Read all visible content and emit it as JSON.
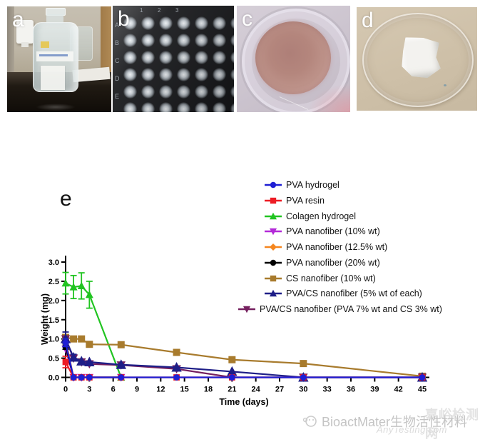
{
  "panels": {
    "a_label": "a",
    "b_label": "b",
    "c_label": "c",
    "d_label": "d",
    "e_label": "e"
  },
  "photo_b": {
    "row_labels": [
      "A",
      "B",
      "C",
      "D",
      "E"
    ],
    "col_labels": [
      "1",
      "2",
      "3"
    ]
  },
  "chart_data": {
    "type": "line",
    "title": "",
    "xlabel": "Time (days)",
    "ylabel": "Weight (mg)",
    "xlim": [
      0,
      45
    ],
    "ylim": [
      0.0,
      3.0
    ],
    "xticks": [
      0,
      3,
      6,
      9,
      12,
      15,
      18,
      21,
      24,
      27,
      30,
      33,
      36,
      39,
      42,
      45
    ],
    "yticks": [
      0.0,
      0.5,
      1.0,
      1.5,
      2.0,
      2.5,
      3.0
    ],
    "ytick_labels": [
      "0.0",
      "0.5",
      "1.0",
      "1.5",
      "2.0",
      "2.5",
      "3.0"
    ],
    "grid": false,
    "legend_position": "upper right, outside plot top",
    "series": [
      {
        "name": "PVA hydrogel",
        "color": "#1f1fd4",
        "marker": "circle",
        "msize": 4.4,
        "x": [
          0,
          1,
          2,
          3,
          7,
          14,
          21,
          30,
          45
        ],
        "y": [
          0.9,
          0,
          0,
          0,
          0,
          0,
          0,
          0,
          0
        ],
        "err": [
          0.1,
          0,
          0,
          0,
          0,
          0,
          0,
          0,
          0
        ]
      },
      {
        "name": "PVA resin",
        "color": "#ed1c24",
        "marker": "square",
        "msize": 4.4,
        "x": [
          0,
          1,
          2,
          3,
          7,
          14,
          21,
          30,
          45
        ],
        "y": [
          0.4,
          0,
          0,
          0,
          0,
          0,
          0,
          0,
          0
        ],
        "err": [
          0.15,
          0,
          0,
          0,
          0,
          0,
          0,
          0,
          0
        ]
      },
      {
        "name": "Colagen hydrogel",
        "color": "#21c421",
        "marker": "triangle",
        "msize": 4.6,
        "x": [
          0,
          1,
          2,
          3,
          7
        ],
        "y": [
          2.45,
          2.35,
          2.38,
          2.15,
          0
        ],
        "err": [
          0.28,
          0.3,
          0.34,
          0.35,
          0
        ]
      },
      {
        "name": "PVA nanofiber (10% wt)",
        "color": "#b32ad8",
        "marker": "triangle-down",
        "msize": 4.8,
        "x": [
          0,
          1,
          2,
          3,
          7
        ],
        "y": [
          0.74,
          0,
          0,
          0,
          0
        ],
        "err": [
          0,
          0,
          0,
          0,
          0
        ]
      },
      {
        "name": "PVA nanofiber (12.5% wt)",
        "color": "#f5861f",
        "marker": "diamond",
        "msize": 4.6,
        "x": [
          0,
          1,
          2,
          3,
          7
        ],
        "y": [
          0.97,
          0,
          0,
          0,
          0
        ],
        "err": [
          0,
          0,
          0,
          0,
          0
        ]
      },
      {
        "name": "PVA nanofiber (20% wt)",
        "color": "#000000",
        "marker": "circle",
        "msize": 4.6,
        "x": [
          0,
          1,
          2,
          3,
          7
        ],
        "y": [
          0.8,
          0,
          0,
          0,
          0
        ],
        "err": [
          0.07,
          0,
          0,
          0,
          0
        ]
      },
      {
        "name": "CS nanofiber (10% wt)",
        "color": "#a87b2d",
        "marker": "square",
        "msize": 5,
        "x": [
          0,
          1,
          2,
          3,
          7,
          14,
          21,
          30,
          45
        ],
        "y": [
          1.04,
          1.0,
          1.0,
          0.86,
          0.85,
          0.65,
          0.46,
          0.36,
          0.03
        ],
        "err": [
          0.07,
          0,
          0,
          0,
          0,
          0,
          0,
          0,
          0
        ]
      },
      {
        "name": "PVA/CS nanofiber (5% wt of each)",
        "color": "#1e1e87",
        "marker": "triangle",
        "msize": 6,
        "x": [
          0,
          1,
          2,
          3,
          7,
          14,
          21,
          30,
          45
        ],
        "y": [
          1.0,
          0.52,
          0.42,
          0.4,
          0.33,
          0.26,
          0.15,
          0,
          0
        ],
        "err": [
          0.18,
          0.08,
          0,
          0,
          0,
          0,
          0,
          0,
          0
        ]
      },
      {
        "name": "PVA/CS nanofiber (PVA 7% wt and CS 3% wt)",
        "color": "#75205f",
        "marker": "triangle-down",
        "msize": 5.2,
        "x": [
          0,
          1,
          2,
          3,
          7,
          14,
          21,
          30,
          45
        ],
        "y": [
          1.0,
          0.5,
          0.4,
          0.35,
          0.32,
          0.22,
          0,
          0,
          0
        ],
        "err": [
          0,
          0.07,
          0,
          0,
          0,
          0,
          0,
          0,
          0
        ]
      }
    ],
    "draw_order": [
      2,
      6,
      4,
      3,
      5,
      8,
      7,
      1,
      0
    ]
  },
  "watermark": {
    "brand": "BioactMater生物活性材料",
    "site_cn": "嘉峪检测网",
    "site_en": "AnyTesting.com"
  }
}
